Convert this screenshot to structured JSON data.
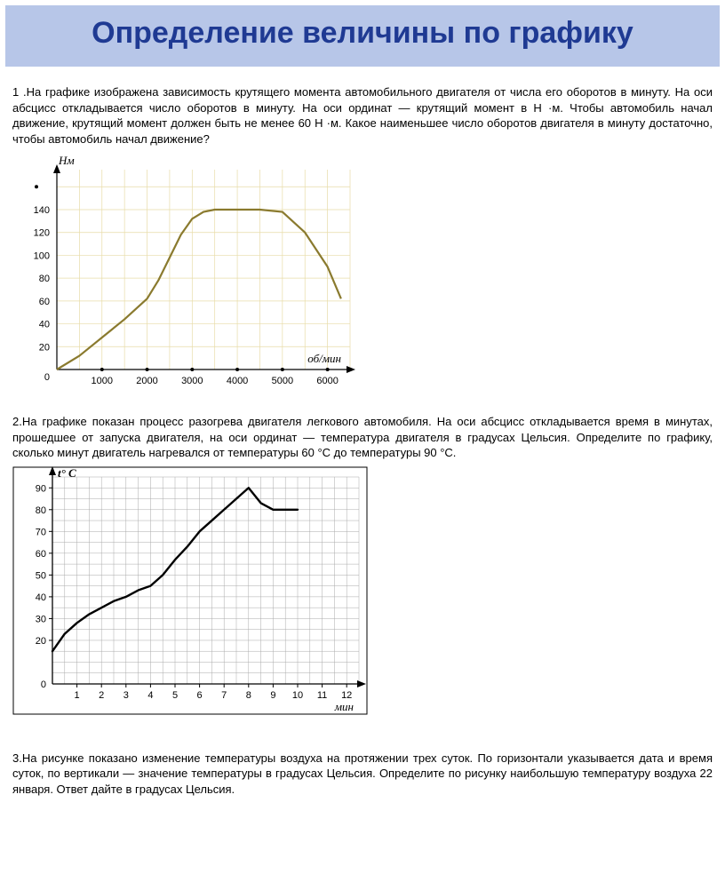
{
  "header": {
    "title": "Определение величины по графику"
  },
  "problem1": {
    "label": "1 .",
    "text": "На графике изображена зависимость крутящего момента автомобильного двигателя от числа его обо­ротов в минуту. На оси абсцисс откладывается число оборотов в минуту. На оси ординат — крутящий момент в Н ·м. Чтобы автомобиль начал движение, крутящий момент должен быть не менее 60 Н ·м. Какое наименьшее число оборотов двигателя в минуту достаточно, чтобы автомобиль начал движение?"
  },
  "chart1": {
    "type": "line",
    "ylabel": "Нм",
    "xlabel": "об/мин",
    "xlim": [
      0,
      6500
    ],
    "ylim": [
      0,
      175
    ],
    "xticks": [
      0,
      1000,
      2000,
      3000,
      4000,
      5000,
      6000
    ],
    "yticks": [
      20,
      40,
      60,
      80,
      100,
      120,
      140
    ],
    "grid_color": "#e8dca8",
    "axis_color": "#000000",
    "line_color": "#8a7a2e",
    "line_width": 2.2,
    "background": "#ffffff",
    "data": [
      [
        0,
        0
      ],
      [
        500,
        12
      ],
      [
        1000,
        28
      ],
      [
        1500,
        44
      ],
      [
        2000,
        62
      ],
      [
        2250,
        78
      ],
      [
        2500,
        98
      ],
      [
        2750,
        118
      ],
      [
        3000,
        132
      ],
      [
        3250,
        138
      ],
      [
        3500,
        140
      ],
      [
        4000,
        140
      ],
      [
        4500,
        140
      ],
      [
        5000,
        138
      ],
      [
        5500,
        120
      ],
      [
        6000,
        90
      ],
      [
        6300,
        62
      ]
    ],
    "dotted_guide_y": 160
  },
  "problem2": {
    "label": "2.",
    "text": "На графике показан процесс разогрева двигателя легкового автомобиля. На оси абсцисс откладыва­ется время в минутах, прошедшее от запуска двигателя, на оси ординат — температура двигателя в градусах Цельсия. Определите по графику, сколько минут двигатель нагревался от температуры 60 °С до температуры 90 °С."
  },
  "chart2": {
    "type": "line",
    "ylabel": "t° C",
    "xlabel": "мин",
    "xlim": [
      0,
      12.5
    ],
    "ylim": [
      0,
      95
    ],
    "xticks": [
      1,
      2,
      3,
      4,
      5,
      6,
      7,
      8,
      9,
      10,
      11,
      12
    ],
    "yticks": [
      20,
      30,
      40,
      50,
      60,
      70,
      80,
      90
    ],
    "grid_step_x": 0.5,
    "grid_step_y": 5,
    "grid_color": "#aaaaaa",
    "axis_color": "#000000",
    "line_color": "#000000",
    "line_width": 2.4,
    "background": "#ffffff",
    "data": [
      [
        0,
        15
      ],
      [
        0.5,
        23
      ],
      [
        1,
        28
      ],
      [
        1.5,
        32
      ],
      [
        2,
        35
      ],
      [
        2.5,
        38
      ],
      [
        3,
        40
      ],
      [
        3.5,
        43
      ],
      [
        4,
        45
      ],
      [
        4.5,
        50
      ],
      [
        5,
        57
      ],
      [
        5.5,
        63
      ],
      [
        6,
        70
      ],
      [
        6.5,
        75
      ],
      [
        7,
        80
      ],
      [
        7.5,
        85
      ],
      [
        8,
        90
      ],
      [
        8.5,
        83
      ],
      [
        9,
        80
      ],
      [
        9.5,
        80
      ],
      [
        10,
        80
      ]
    ]
  },
  "problem3": {
    "label": "3.",
    "text": "На рисунке показано изменение температуры воздуха на протяжении трех суток. По горизонтали указы­вается дата и время суток, по вертикали — значение температуры в градусах Цельсия. Определите по ри­сунку наибольшую температуру воздуха 22 января. Ответ дайте в градусах Цельсия."
  }
}
